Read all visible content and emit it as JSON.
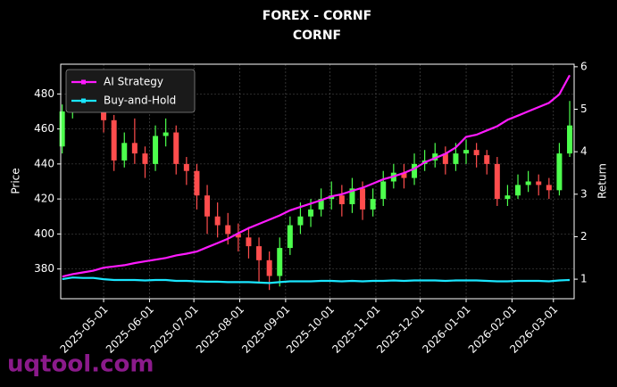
{
  "chart_data": {
    "type": "candlestick",
    "title": "FOREX - CORNF",
    "subtitle": "CORNF",
    "ylabel": "Price",
    "y2label": "Return",
    "watermark": "uqtool.com",
    "up_color": "#4dff4d",
    "down_color": "#ff4d4d",
    "grid": true,
    "legend": "upper left",
    "xlim": [
      "2025-04-02",
      "2026-03-15"
    ],
    "xticks": [
      "2025-05-01",
      "2025-06-01",
      "2025-07-01",
      "2025-08-01",
      "2025-09-01",
      "2025-10-01",
      "2025-11-01",
      "2025-12-01",
      "2026-01-01",
      "2026-02-01",
      "2026-03-01"
    ],
    "ylim": [
      363,
      497
    ],
    "yticks": [
      380,
      400,
      420,
      440,
      460,
      480
    ],
    "y2lim": [
      0.54,
      6.06
    ],
    "y2ticks": [
      1,
      2,
      3,
      4,
      5,
      6
    ],
    "x": [
      "2025-04-03",
      "2025-04-10",
      "2025-04-17",
      "2025-04-24",
      "2025-05-01",
      "2025-05-08",
      "2025-05-15",
      "2025-05-22",
      "2025-05-29",
      "2025-06-05",
      "2025-06-12",
      "2025-06-19",
      "2025-06-26",
      "2025-07-03",
      "2025-07-10",
      "2025-07-17",
      "2025-07-24",
      "2025-07-31",
      "2025-08-07",
      "2025-08-14",
      "2025-08-21",
      "2025-08-28",
      "2025-09-04",
      "2025-09-11",
      "2025-09-18",
      "2025-09-25",
      "2025-10-02",
      "2025-10-09",
      "2025-10-16",
      "2025-10-23",
      "2025-10-30",
      "2025-11-06",
      "2025-11-13",
      "2025-11-20",
      "2025-11-27",
      "2025-12-04",
      "2025-12-11",
      "2025-12-18",
      "2025-12-25",
      "2026-01-01",
      "2026-01-08",
      "2026-01-15",
      "2026-01-22",
      "2026-01-29",
      "2026-02-05",
      "2026-02-12",
      "2026-02-19",
      "2026-02-26",
      "2026-03-05",
      "2026-03-12"
    ],
    "open": [
      450,
      470,
      482,
      478,
      484,
      465,
      442,
      452,
      446,
      440,
      456,
      458,
      440,
      436,
      422,
      410,
      405,
      400,
      398,
      393,
      385,
      376,
      392,
      405,
      410,
      414,
      420,
      422,
      417,
      426,
      414,
      420,
      430,
      435,
      432,
      440,
      442,
      446,
      440,
      446,
      448,
      445,
      440,
      420,
      422,
      428,
      430,
      428,
      425,
      446
    ],
    "high": [
      474,
      490,
      488,
      490,
      488,
      468,
      458,
      466,
      450,
      462,
      466,
      462,
      444,
      440,
      428,
      418,
      412,
      406,
      404,
      398,
      390,
      398,
      410,
      418,
      420,
      426,
      430,
      428,
      432,
      430,
      426,
      436,
      440,
      440,
      446,
      448,
      452,
      450,
      452,
      454,
      452,
      448,
      444,
      428,
      434,
      436,
      434,
      432,
      452,
      476
    ],
    "low": [
      446,
      466,
      472,
      470,
      458,
      436,
      438,
      440,
      432,
      436,
      450,
      434,
      428,
      414,
      400,
      398,
      394,
      390,
      386,
      372,
      368,
      370,
      388,
      400,
      404,
      410,
      414,
      410,
      412,
      408,
      410,
      416,
      426,
      426,
      428,
      436,
      438,
      434,
      436,
      440,
      438,
      434,
      416,
      416,
      420,
      424,
      422,
      420,
      422,
      444
    ],
    "close": [
      470,
      482,
      478,
      484,
      465,
      442,
      452,
      446,
      440,
      456,
      458,
      440,
      436,
      422,
      410,
      405,
      400,
      398,
      393,
      385,
      376,
      392,
      405,
      410,
      414,
      420,
      422,
      417,
      426,
      414,
      420,
      430,
      435,
      432,
      440,
      442,
      446,
      440,
      446,
      448,
      445,
      440,
      420,
      422,
      428,
      430,
      428,
      425,
      446,
      462
    ],
    "series": [
      {
        "name": "AI Strategy",
        "color": "#ff1aff",
        "axis": "y2",
        "values": [
          1.06,
          1.12,
          1.16,
          1.2,
          1.27,
          1.3,
          1.33,
          1.38,
          1.42,
          1.46,
          1.5,
          1.56,
          1.6,
          1.65,
          1.75,
          1.85,
          1.95,
          2.08,
          2.2,
          2.3,
          2.4,
          2.5,
          2.62,
          2.7,
          2.78,
          2.86,
          2.95,
          3.0,
          3.08,
          3.15,
          3.25,
          3.35,
          3.42,
          3.5,
          3.6,
          3.75,
          3.85,
          3.95,
          4.1,
          4.35,
          4.4,
          4.5,
          4.6,
          4.75,
          4.85,
          4.95,
          5.05,
          5.15,
          5.35,
          5.8
        ]
      },
      {
        "name": "Buy-and-Hold",
        "color": "#1ae6ff",
        "axis": "y2",
        "values": [
          1.0,
          1.04,
          1.03,
          1.03,
          1.0,
          0.98,
          0.98,
          0.98,
          0.97,
          0.98,
          0.98,
          0.96,
          0.96,
          0.95,
          0.94,
          0.94,
          0.93,
          0.93,
          0.93,
          0.92,
          0.91,
          0.93,
          0.95,
          0.95,
          0.95,
          0.96,
          0.96,
          0.95,
          0.96,
          0.95,
          0.96,
          0.96,
          0.97,
          0.96,
          0.97,
          0.97,
          0.97,
          0.96,
          0.97,
          0.97,
          0.97,
          0.96,
          0.95,
          0.95,
          0.96,
          0.96,
          0.96,
          0.95,
          0.97,
          0.98
        ]
      }
    ]
  }
}
